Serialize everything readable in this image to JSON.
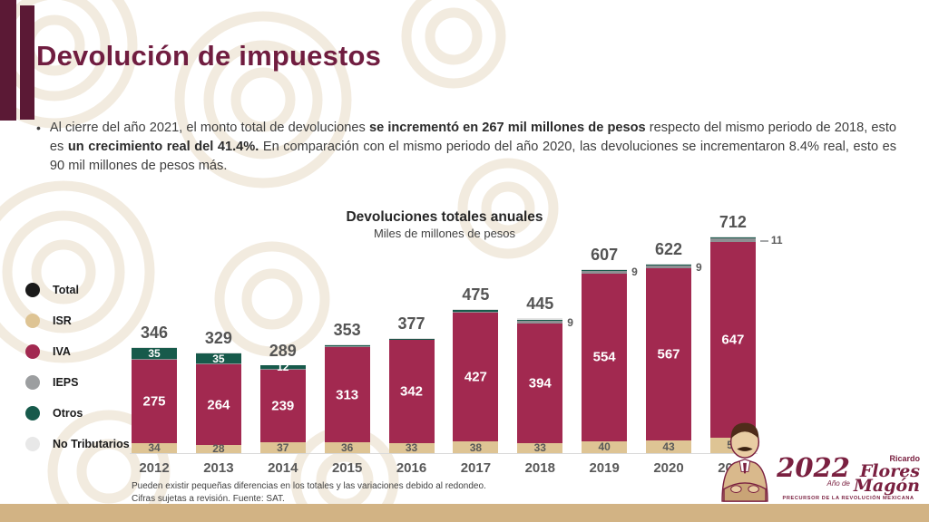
{
  "slide": {
    "title": "Devolución de impuestos",
    "bullet": {
      "marker": "•",
      "part1": "Al cierre del año 2021, el monto total de devoluciones ",
      "part2_bold": "se incrementó en 267 mil millones de pesos",
      "part3": " respecto del mismo periodo de 2018, esto es ",
      "part4_bold": "un crecimiento real del 41.4%.",
      "part5": " En comparación con el mismo periodo del año 2020, las devoluciones se incrementaron 8.4% real, esto es 90 mil millones de pesos más."
    },
    "footnote": {
      "line1": "Pueden existir pequeñas diferencias en los totales y las variaciones debido al redondeo.",
      "line2": "Cifras sujetas a revisión. Fuente: SAT."
    },
    "badge": {
      "year": "2022",
      "ano_de": "Año de",
      "ricardo": "Ricardo",
      "flores": "Flores",
      "magon": "Magón",
      "tagline": "PRECURSOR DE LA REVOLUCIÓN MEXICANA"
    },
    "colors": {
      "accent_dark": "#5B1935",
      "title": "#701D40",
      "footer_strip": "#D2B384"
    }
  },
  "chart_data": {
    "type": "bar",
    "stacked": true,
    "title": "Devoluciones totales anuales",
    "subtitle": "Miles de millones de pesos",
    "categories": [
      "2012",
      "2013",
      "2014",
      "2015",
      "2016",
      "2017",
      "2018",
      "2019",
      "2020",
      "2021"
    ],
    "totals": [
      346,
      329,
      289,
      353,
      377,
      475,
      445,
      607,
      622,
      712
    ],
    "series": [
      {
        "name": "ISR",
        "color": "#DEC494",
        "values": [
          34,
          28,
          37,
          36,
          33,
          38,
          33,
          40,
          43,
          52
        ],
        "label": {
          "mode": "inside",
          "color": "#595959",
          "size": 12,
          "shown": [
            true,
            true,
            true,
            true,
            true,
            true,
            true,
            true,
            true,
            true
          ]
        }
      },
      {
        "name": "IVA",
        "color": "#A22950",
        "values": [
          275,
          264,
          239,
          313,
          342,
          427,
          394,
          554,
          567,
          647
        ],
        "label": {
          "mode": "inside",
          "color": "#FFFFFF",
          "size": 15,
          "shown": [
            true,
            true,
            true,
            true,
            true,
            true,
            true,
            true,
            true,
            true
          ]
        }
      },
      {
        "name": "IEPS",
        "color": "#8E9093",
        "values": [
          1,
          1,
          1,
          1,
          0,
          2,
          9,
          9,
          9,
          11
        ],
        "label": {
          "mode": "side",
          "color": "#595959",
          "size": 12,
          "shown": [
            false,
            false,
            false,
            false,
            false,
            false,
            true,
            true,
            true,
            true
          ],
          "leader": [
            false,
            false,
            false,
            false,
            false,
            false,
            false,
            false,
            false,
            true
          ]
        }
      },
      {
        "name": "Otros",
        "color": "#175A4B",
        "values": [
          35,
          35,
          12,
          2,
          1,
          6,
          4,
          2,
          1,
          1
        ],
        "label": {
          "mode": "inside",
          "color": "#FFFFFF",
          "size": 12,
          "shown": [
            true,
            true,
            true,
            false,
            false,
            false,
            false,
            false,
            false,
            false
          ]
        }
      },
      {
        "name": "No Tributarios",
        "color": "#E4E4E4",
        "values": [
          1,
          1,
          0,
          1,
          1,
          2,
          5,
          2,
          2,
          1
        ],
        "label": {
          "mode": "none"
        }
      }
    ],
    "legend": [
      {
        "label": "Total",
        "color": "#1A1A1A"
      },
      {
        "label": "ISR",
        "color": "#DEC494"
      },
      {
        "label": "IVA",
        "color": "#A22950"
      },
      {
        "label": "IEPS",
        "color": "#9C9EA0"
      },
      {
        "label": "Otros",
        "color": "#175A4B"
      },
      {
        "label": "No Tributarios",
        "color": "#E8E8E8"
      }
    ],
    "legend_position": "left",
    "grid": false,
    "ylim": [
      0,
      760
    ]
  }
}
